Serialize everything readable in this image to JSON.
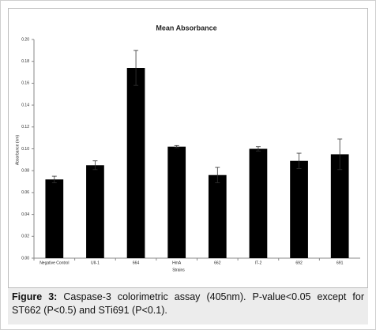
{
  "chart_data": {
    "type": "bar",
    "title": "Mean Absorbance",
    "x_label": "Strains",
    "y_label": "Absorbance (nm)",
    "categories": [
      "Negative Control",
      "UII-1",
      "664",
      "HmA",
      "662",
      "IT-2",
      "692",
      "691"
    ],
    "values": [
      0.072,
      0.085,
      0.174,
      0.102,
      0.076,
      0.1,
      0.089,
      0.095
    ],
    "errors": [
      0.003,
      0.004,
      0.016,
      0.001,
      0.007,
      0.002,
      0.007,
      0.014
    ],
    "color": "#000000",
    "grid": false,
    "ylim": [
      0,
      0.2
    ],
    "yticks": [
      {
        "value": 0,
        "label": "0.00"
      },
      {
        "value": 0.02,
        "label": "0.02"
      },
      {
        "value": 0.04,
        "label": "0.04"
      },
      {
        "value": 0.06,
        "label": "0.06"
      },
      {
        "value": 0.08,
        "label": "0.08"
      },
      {
        "value": 0.1,
        "label": "0.10"
      },
      {
        "value": 0.12,
        "label": "0.12"
      },
      {
        "value": 0.14,
        "label": "0.14"
      },
      {
        "value": 0.16,
        "label": "0.16"
      },
      {
        "value": 0.18,
        "label": "0.18"
      },
      {
        "value": 0.2,
        "label": "0.20"
      }
    ]
  },
  "caption": {
    "label": "Figure 3:",
    "text": "Caspase-3 colorimetric assay (405nm). P-value<0.05 except for ST662 (P<0.5) and STi691 (P<0.1)."
  }
}
